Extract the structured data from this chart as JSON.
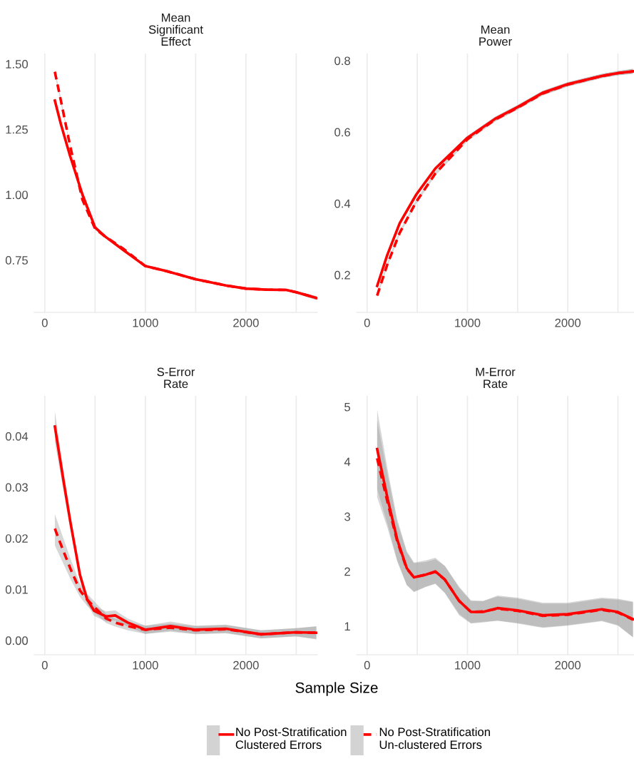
{
  "chart_data": [
    {
      "type": "line",
      "title": "Mean\nSignificant\nEffect",
      "xlim": [
        -105,
        2710
      ],
      "xticks": [
        0,
        {
          "value": 500,
          "label": null
        },
        1000,
        {
          "value": 1500,
          "label": null
        },
        2000,
        {
          "value": 2500,
          "label": null
        }
      ],
      "ylim": [
        0.55,
        1.54
      ],
      "yticks": [
        0.75,
        {
          "value": 1.0,
          "label": "1.00"
        },
        1.25,
        {
          "value": 1.5,
          "label": "1.50"
        }
      ],
      "grid": "x",
      "x": [
        100,
        160,
        250,
        375,
        500,
        600,
        775,
        1000,
        1200,
        1500,
        1800,
        2000,
        2200,
        2400,
        2500,
        2700
      ],
      "series": [
        {
          "color": "#ff0000",
          "line_style": "solid",
          "values": [
            1.36,
            1.27,
            1.15,
            1.0,
            0.875,
            0.84,
            0.79,
            0.727,
            0.709,
            0.677,
            0.653,
            0.641,
            0.637,
            0.636,
            0.627,
            0.605
          ],
          "lower": [
            1.35,
            1.26,
            1.145,
            0.995,
            0.87,
            0.835,
            0.786,
            0.723,
            0.705,
            0.673,
            0.649,
            0.637,
            0.633,
            0.632,
            0.622,
            0.598
          ],
          "upper": [
            1.37,
            1.28,
            1.155,
            1.005,
            0.88,
            0.845,
            0.794,
            0.731,
            0.713,
            0.681,
            0.657,
            0.645,
            0.641,
            0.64,
            0.632,
            0.612
          ]
        },
        {
          "color": "#ff0000",
          "line_style": "dashed",
          "values": [
            1.47,
            1.36,
            1.19,
            0.98,
            0.87,
            0.84,
            0.795,
            0.727,
            0.709,
            0.677,
            0.653,
            0.641,
            0.637,
            0.636,
            0.627,
            0.605
          ],
          "lower": [
            1.46,
            1.35,
            1.185,
            0.975,
            0.865,
            0.835,
            0.791,
            0.723,
            0.705,
            0.673,
            0.649,
            0.637,
            0.633,
            0.632,
            0.622,
            0.598
          ],
          "upper": [
            1.48,
            1.37,
            1.195,
            0.985,
            0.875,
            0.845,
            0.799,
            0.731,
            0.713,
            0.681,
            0.657,
            0.645,
            0.641,
            0.64,
            0.632,
            0.612
          ]
        }
      ]
    },
    {
      "type": "line",
      "title": "Mean\nPower",
      "xlim": [
        -105,
        2660
      ],
      "xticks": [
        0,
        {
          "value": 500,
          "label": null
        },
        1000,
        {
          "value": 1500,
          "label": null
        },
        2000,
        {
          "value": 2500,
          "label": null
        }
      ],
      "ylim": [
        0.095,
        0.82
      ],
      "yticks": [
        0.2,
        0.4,
        0.6,
        0.8
      ],
      "grid": "x",
      "x": [
        100,
        200,
        325,
        490,
        680,
        1000,
        1275,
        1500,
        1750,
        2000,
        2340,
        2500,
        2650
      ],
      "series": [
        {
          "color": "#ff0000",
          "line_style": "solid",
          "values": [
            0.169,
            0.255,
            0.345,
            0.425,
            0.498,
            0.584,
            0.637,
            0.67,
            0.71,
            0.734,
            0.757,
            0.765,
            0.77
          ],
          "lower": [
            0.163,
            0.249,
            0.339,
            0.419,
            0.492,
            0.578,
            0.631,
            0.664,
            0.704,
            0.728,
            0.751,
            0.759,
            0.763
          ],
          "upper": [
            0.175,
            0.261,
            0.351,
            0.431,
            0.504,
            0.59,
            0.643,
            0.676,
            0.716,
            0.74,
            0.763,
            0.771,
            0.777
          ]
        },
        {
          "color": "#ff0000",
          "line_style": "dashed",
          "values": [
            0.142,
            0.228,
            0.318,
            0.405,
            0.484,
            0.58,
            0.635,
            0.668,
            0.708,
            0.733,
            0.757,
            0.765,
            0.77
          ],
          "lower": [
            0.136,
            0.222,
            0.312,
            0.399,
            0.478,
            0.574,
            0.629,
            0.662,
            0.702,
            0.727,
            0.751,
            0.759,
            0.763
          ],
          "upper": [
            0.148,
            0.234,
            0.324,
            0.411,
            0.49,
            0.586,
            0.641,
            0.674,
            0.714,
            0.739,
            0.763,
            0.771,
            0.777
          ]
        }
      ]
    },
    {
      "type": "line",
      "title": "S-Error\nRate",
      "xlabel": "Sample Size",
      "xlim": [
        -105,
        2710
      ],
      "xticks": [
        0,
        {
          "value": 500,
          "label": null
        },
        1000,
        {
          "value": 1500,
          "label": null
        },
        2000,
        {
          "value": 2500,
          "label": null
        }
      ],
      "ylim": [
        -0.0028,
        0.0479
      ],
      "yticks": [
        {
          "value": 0,
          "label": "0.00"
        },
        0.01,
        0.02,
        0.03,
        0.04
      ],
      "grid": "x",
      "x": [
        100,
        185,
        256,
        350,
        420,
        490,
        610,
        700,
        825,
        1000,
        1250,
        1500,
        1800,
        2150,
        2500,
        2700
      ],
      "series": [
        {
          "color": "#ff0000",
          "line_style": "solid",
          "values": [
            0.0419,
            0.0314,
            0.023,
            0.0128,
            0.0081,
            0.0058,
            0.0047,
            0.0049,
            0.0035,
            0.0021,
            0.0028,
            0.0021,
            0.0023,
            0.0012,
            0.0016,
            0.0015
          ],
          "lower": [
            0.0389,
            0.0294,
            0.0215,
            0.0118,
            0.0071,
            0.0048,
            0.0037,
            0.0039,
            0.0027,
            0.0013,
            0.0019,
            0.0013,
            0.0015,
            0.0004,
            0.0008,
            0.0002
          ],
          "upper": [
            0.0449,
            0.0334,
            0.0245,
            0.0138,
            0.0091,
            0.0068,
            0.0057,
            0.0059,
            0.0043,
            0.0029,
            0.0037,
            0.0029,
            0.0031,
            0.002,
            0.0024,
            0.0028
          ]
        },
        {
          "color": "#ff0000",
          "line_style": "dashed",
          "values": [
            0.0219,
            0.0175,
            0.014,
            0.0098,
            0.008,
            0.0066,
            0.0043,
            0.0035,
            0.0028,
            0.0021,
            0.0025,
            0.002,
            0.0022,
            0.0012,
            0.0016,
            0.0015
          ],
          "lower": [
            0.0186,
            0.015,
            0.012,
            0.0085,
            0.0068,
            0.0055,
            0.0034,
            0.0027,
            0.002,
            0.0013,
            0.0017,
            0.0012,
            0.0014,
            0.0004,
            0.0008,
            0.0003
          ],
          "upper": [
            0.0247,
            0.02,
            0.016,
            0.0111,
            0.0092,
            0.0077,
            0.0052,
            0.0043,
            0.0036,
            0.0029,
            0.0033,
            0.0028,
            0.003,
            0.002,
            0.0024,
            0.0027
          ]
        }
      ]
    },
    {
      "type": "line",
      "title": "M-Error\nRate",
      "xlim": [
        -105,
        2660
      ],
      "xticks": [
        0,
        {
          "value": 500,
          "label": null
        },
        1000,
        {
          "value": 1500,
          "label": null
        },
        2000,
        {
          "value": 2500,
          "label": null
        }
      ],
      "ylim": [
        0.48,
        5.2
      ],
      "yticks": [
        1,
        2,
        3,
        4,
        5
      ],
      "grid": "x",
      "legend": "bottom",
      "x": [
        100,
        205,
        300,
        395,
        467,
        585,
        680,
        775,
        918,
        1035,
        1155,
        1300,
        1500,
        1750,
        2000,
        2340,
        2500,
        2650
      ],
      "series": [
        {
          "name": "No Post-Stratification\nClustered Errors",
          "color": "#ff0000",
          "line_style": "solid",
          "values": [
            4.23,
            3.32,
            2.58,
            2.06,
            1.89,
            1.94,
            2.0,
            1.85,
            1.46,
            1.26,
            1.26,
            1.33,
            1.29,
            1.2,
            1.22,
            1.31,
            1.26,
            1.13
          ],
          "lower": [
            3.5,
            2.85,
            2.2,
            1.75,
            1.62,
            1.72,
            1.78,
            1.6,
            1.2,
            1.05,
            1.07,
            1.1,
            1.06,
            0.98,
            1.02,
            1.1,
            1.02,
            0.8
          ],
          "upper": [
            4.95,
            3.85,
            2.95,
            2.37,
            2.16,
            2.2,
            2.25,
            2.1,
            1.72,
            1.47,
            1.46,
            1.56,
            1.52,
            1.43,
            1.43,
            1.52,
            1.5,
            1.45
          ]
        },
        {
          "name": "No Post-Stratification\nUn-clustered Errors",
          "color": "#ff0000",
          "line_style": "dashed",
          "values": [
            4.06,
            3.25,
            2.55,
            2.05,
            1.89,
            1.94,
            1.99,
            1.85,
            1.46,
            1.26,
            1.27,
            1.32,
            1.28,
            1.19,
            1.21,
            1.3,
            1.25,
            1.12
          ],
          "lower": [
            3.35,
            2.78,
            2.18,
            1.75,
            1.63,
            1.72,
            1.77,
            1.61,
            1.22,
            1.06,
            1.08,
            1.1,
            1.05,
            0.97,
            1.01,
            1.09,
            1.01,
            0.8
          ],
          "upper": [
            4.75,
            3.75,
            2.9,
            2.35,
            2.15,
            2.17,
            2.22,
            2.1,
            1.7,
            1.46,
            1.46,
            1.54,
            1.5,
            1.41,
            1.41,
            1.5,
            1.48,
            1.44
          ]
        }
      ]
    }
  ]
}
